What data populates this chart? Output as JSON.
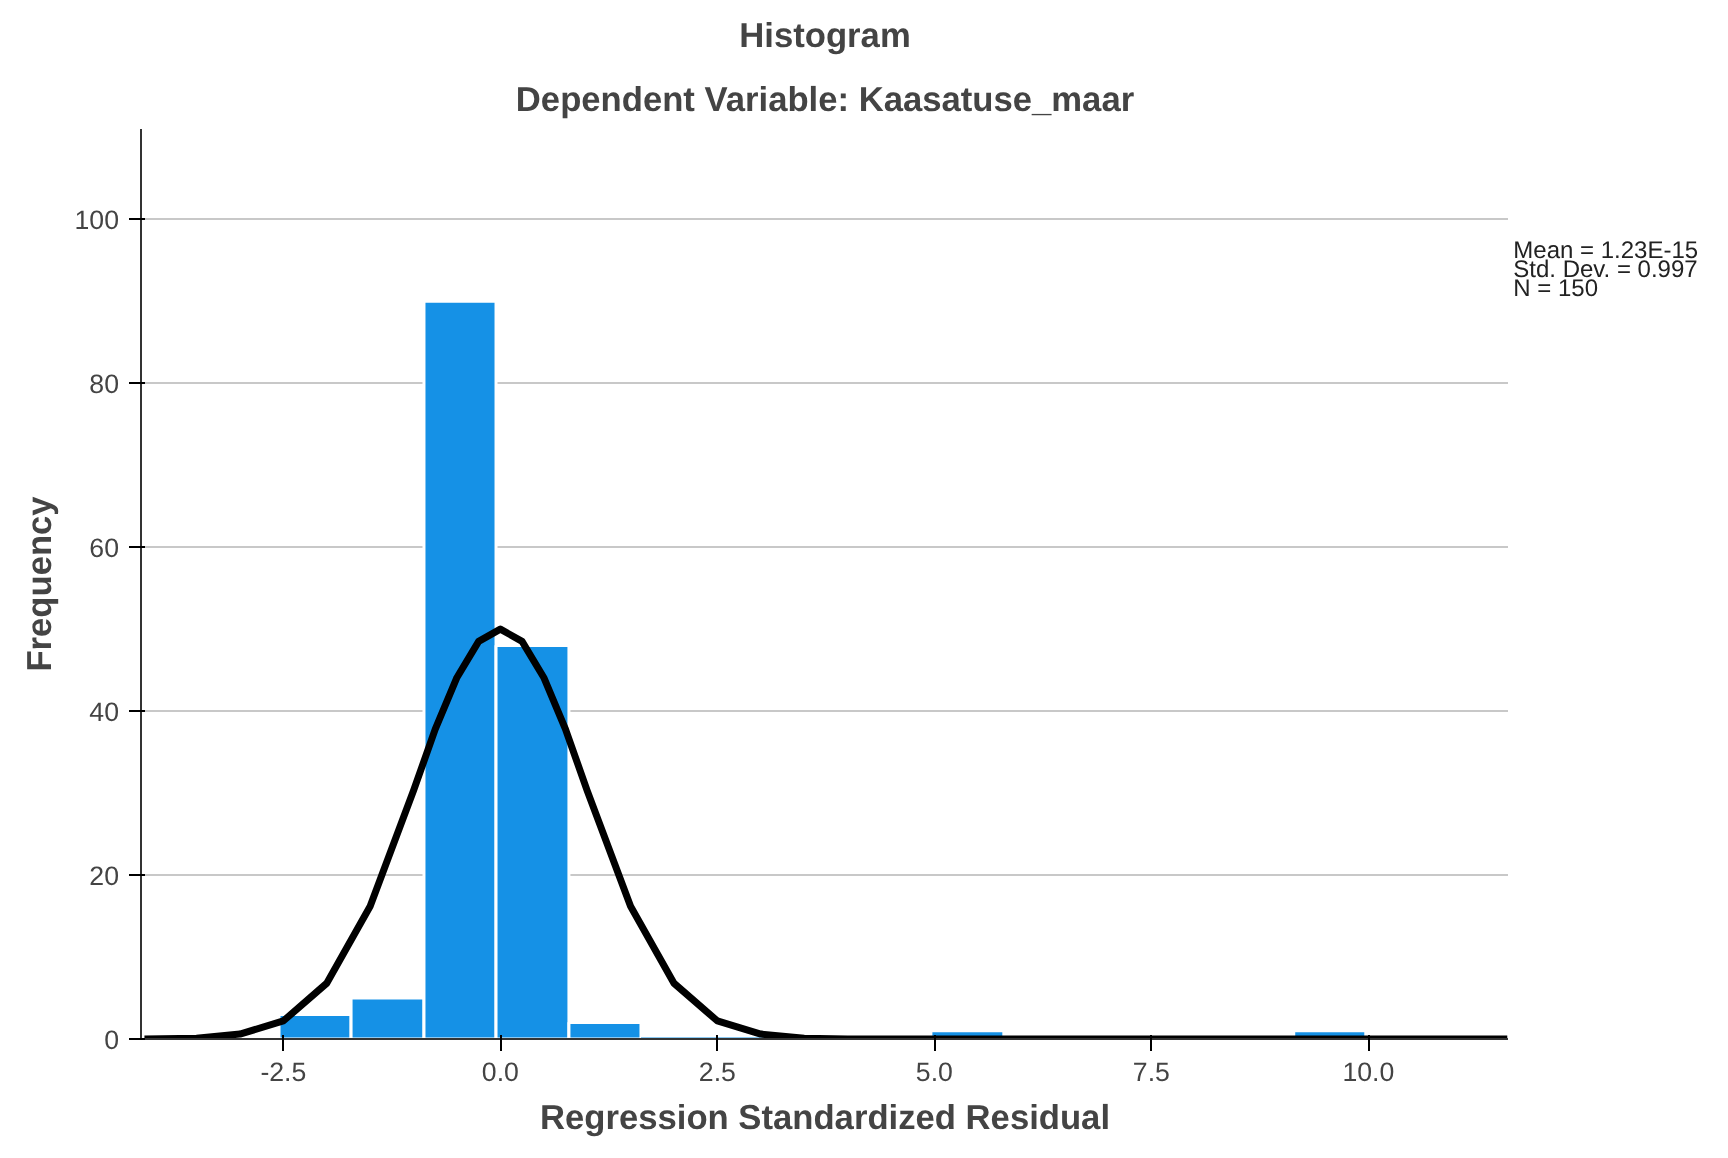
{
  "chart_data": {
    "type": "histogram",
    "title": "Histogram",
    "subtitle": "Dependent Variable: Kaasatuse_maar",
    "xlabel": "Regression Standardized Residual",
    "ylabel": "Frequency",
    "bins": [
      -2.55,
      -1.72,
      -0.88,
      -0.05,
      0.79,
      1.62,
      2.46,
      3.29,
      4.13,
      4.96,
      5.8,
      6.63,
      7.47,
      8.3,
      9.14,
      9.97
    ],
    "values": [
      3,
      5,
      90,
      48,
      2,
      0,
      0,
      0,
      0,
      1,
      0,
      0,
      0,
      0,
      1
    ],
    "color": "#1591e6",
    "series": [
      {
        "type": "line",
        "color": "#000000",
        "x": [
          -4.1,
          -3.5,
          -3,
          -2.5,
          -2,
          -1.5,
          -1,
          -0.75,
          -0.5,
          -0.25,
          0,
          0.25,
          0.5,
          0.75,
          1,
          1.5,
          2,
          2.5,
          3,
          3.5,
          4,
          5,
          11.6
        ],
        "values": [
          0,
          0.1,
          0.6,
          2.2,
          6.8,
          16.2,
          30.3,
          37.8,
          44.1,
          48.5,
          50,
          48.5,
          44.1,
          37.8,
          30.3,
          16.2,
          6.8,
          2.2,
          0.6,
          0.1,
          0,
          0,
          0
        ]
      }
    ],
    "xlim": [
      -4.14,
      11.62
    ],
    "ylim": [
      0,
      111
    ],
    "xticks": [
      {
        "value": -2.5,
        "label": "-2.5"
      },
      {
        "value": 0,
        "label": "0.0"
      },
      {
        "value": 2.5,
        "label": "2.5"
      },
      {
        "value": 5,
        "label": "5.0"
      },
      {
        "value": 7.5,
        "label": "7.5"
      },
      {
        "value": 10,
        "label": "10.0"
      }
    ],
    "yticks": [
      0,
      20,
      40,
      60,
      80,
      100
    ],
    "grid": "y",
    "annotations": [
      "Mean = 1.23E-15",
      "Std. Dev. = 0.997",
      "N = 150"
    ]
  }
}
